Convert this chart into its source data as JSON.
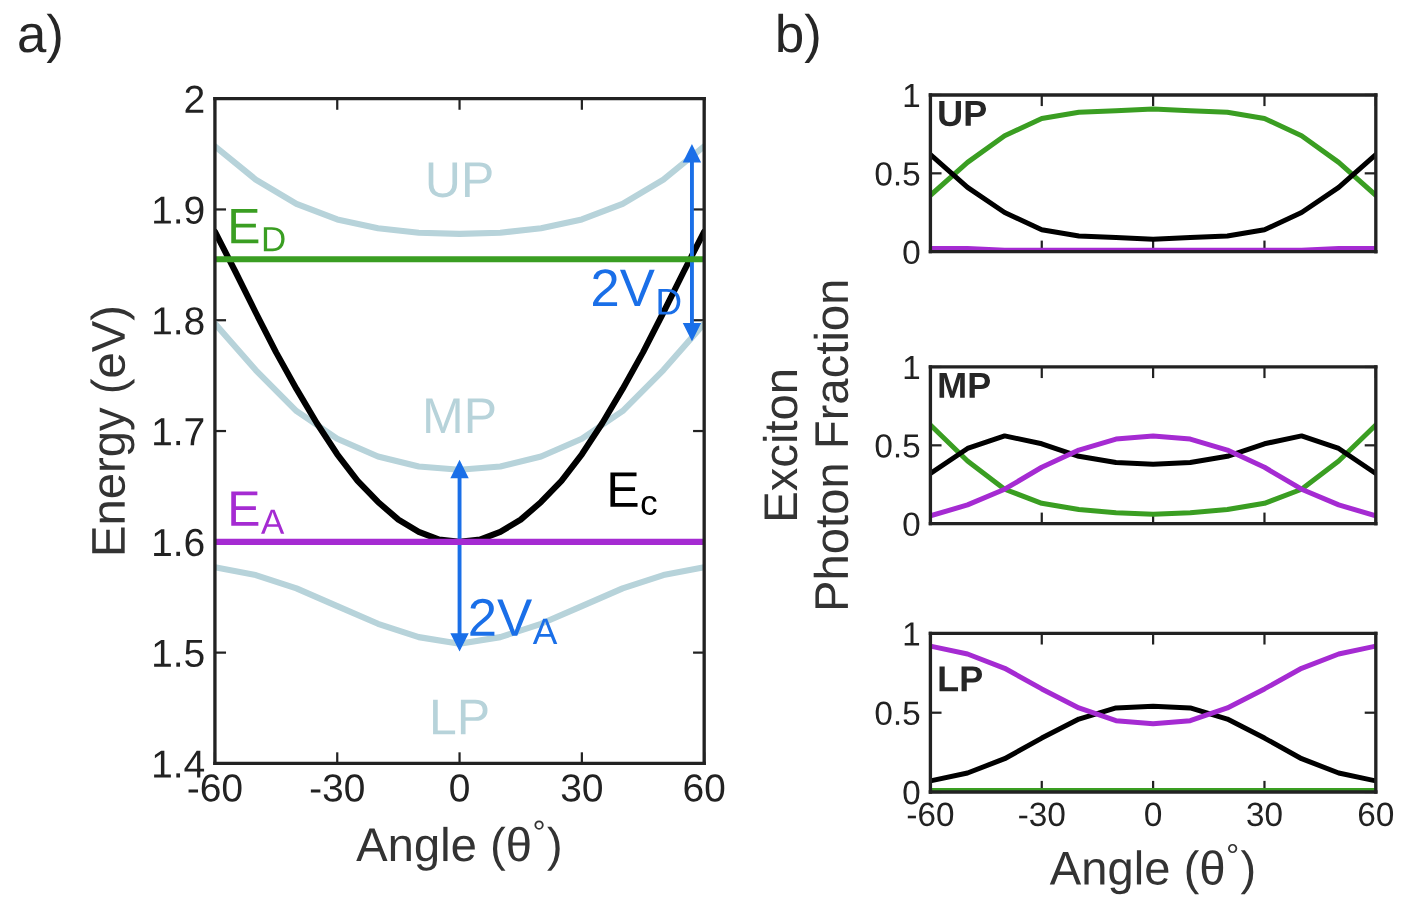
{
  "chart_data": [
    {
      "type": "line",
      "title": "a)",
      "xlabel": "Angle (θ$^{°}$)",
      "ylabel": "Energy (eV)",
      "x": [
        -60,
        -50,
        -40,
        -30,
        -20,
        -10,
        0,
        10,
        20,
        30,
        40,
        50,
        60
      ],
      "xlim": [
        -60,
        60
      ],
      "xticks": [
        -60,
        -30,
        0,
        30,
        60
      ],
      "ylim": [
        1.4,
        2
      ],
      "yticks": [
        1.4,
        1.5,
        1.6,
        1.7,
        1.8,
        1.9,
        2
      ],
      "series": [
        {
          "name": "UP",
          "color": "#b7d3da",
          "values": [
            1.957,
            1.927,
            1.905,
            1.891,
            1.883,
            1.879,
            1.878,
            1.879,
            1.883,
            1.891,
            1.905,
            1.927,
            1.957
          ]
        },
        {
          "name": "MP",
          "color": "#b7d3da",
          "values": [
            1.797,
            1.755,
            1.718,
            1.693,
            1.677,
            1.668,
            1.665,
            1.668,
            1.677,
            1.693,
            1.718,
            1.755,
            1.797
          ]
        },
        {
          "name": "LP",
          "color": "#b7d3da",
          "values": [
            1.577,
            1.57,
            1.558,
            1.542,
            1.526,
            1.514,
            1.508,
            1.514,
            1.526,
            1.542,
            1.558,
            1.57,
            1.577
          ]
        },
        {
          "name": "E$_{c}$",
          "color": "#000000",
          "x": [
            -60,
            -55,
            -50,
            -45,
            -40,
            -35,
            -30,
            -25,
            -20,
            -15,
            -10,
            -5,
            0,
            5,
            10,
            15,
            20,
            25,
            30,
            35,
            40,
            45,
            50,
            55,
            60
          ],
          "values": [
            1.88,
            1.844,
            1.807,
            1.771,
            1.738,
            1.707,
            1.679,
            1.655,
            1.636,
            1.62,
            1.609,
            1.602,
            1.6,
            1.602,
            1.609,
            1.62,
            1.636,
            1.655,
            1.679,
            1.707,
            1.738,
            1.771,
            1.807,
            1.844,
            1.88
          ]
        },
        {
          "name": "2V$_{D}$",
          "color": "#1a6fe8",
          "marker": "triangle",
          "x": [
            57,
            57
          ],
          "values": [
            1.79,
            1.95
          ]
        },
        {
          "name": "2V$_{A}$",
          "color": "#1a6fe8",
          "marker": "triangle",
          "x": [
            0,
            0
          ],
          "values": [
            1.51,
            1.665
          ]
        }
      ],
      "ref_lines": [
        {
          "axis": "y",
          "value": 1.855,
          "label": "E$_{D}$",
          "color": "#3a9e22"
        },
        {
          "axis": "y",
          "value": 1.6,
          "label": "E$_{A}$",
          "color": "#a52bd2"
        }
      ]
    },
    {
      "type": "line",
      "title": "b)",
      "annotations": [
        "UP"
      ],
      "tick_labels": "y",
      "x": [
        -60,
        -50,
        -40,
        -30,
        -20,
        -10,
        0,
        10,
        20,
        30,
        40,
        50,
        60
      ],
      "xlim": [
        -60,
        60
      ],
      "xticks": [
        -60,
        -30,
        0,
        30,
        60
      ],
      "ylim": [
        0,
        1
      ],
      "yticks": [
        0,
        0.5,
        1
      ],
      "series": [
        {
          "color": "#3a9e22",
          "values": [
            0.36,
            0.57,
            0.74,
            0.85,
            0.89,
            0.9,
            0.91,
            0.9,
            0.89,
            0.85,
            0.74,
            0.57,
            0.36
          ]
        },
        {
          "color": "#000000",
          "values": [
            0.62,
            0.41,
            0.25,
            0.14,
            0.1,
            0.09,
            0.08,
            0.09,
            0.1,
            0.14,
            0.25,
            0.41,
            0.62
          ]
        },
        {
          "color": "#a52bd2",
          "values": [
            0.02,
            0.02,
            0.01,
            0.01,
            0.01,
            0.01,
            0.01,
            0.01,
            0.01,
            0.01,
            0.01,
            0.02,
            0.02
          ]
        }
      ]
    },
    {
      "type": "line",
      "ylabel": "Exciton\nPhoton Fraction",
      "annotations": [
        "MP"
      ],
      "tick_labels": "y",
      "x": [
        -60,
        -50,
        -40,
        -30,
        -20,
        -10,
        0,
        10,
        20,
        30,
        40,
        50,
        60
      ],
      "xlim": [
        -60,
        60
      ],
      "xticks": [
        -60,
        -30,
        0,
        30,
        60
      ],
      "ylim": [
        0,
        1
      ],
      "yticks": [
        0,
        0.5,
        1
      ],
      "series": [
        {
          "color": "#3a9e22",
          "values": [
            0.63,
            0.4,
            0.22,
            0.13,
            0.09,
            0.07,
            0.06,
            0.07,
            0.09,
            0.13,
            0.22,
            0.4,
            0.63
          ]
        },
        {
          "color": "#000000",
          "values": [
            0.32,
            0.48,
            0.56,
            0.51,
            0.43,
            0.39,
            0.38,
            0.39,
            0.43,
            0.51,
            0.56,
            0.48,
            0.32
          ]
        },
        {
          "color": "#a52bd2",
          "values": [
            0.05,
            0.12,
            0.22,
            0.36,
            0.47,
            0.54,
            0.56,
            0.54,
            0.47,
            0.36,
            0.22,
            0.12,
            0.05
          ]
        }
      ]
    },
    {
      "type": "line",
      "xlabel": "Angle (θ$^{°}$)",
      "annotations": [
        "LP"
      ],
      "x": [
        -60,
        -50,
        -40,
        -30,
        -20,
        -10,
        0,
        10,
        20,
        30,
        40,
        50,
        60
      ],
      "xlim": [
        -60,
        60
      ],
      "xticks": [
        -60,
        -30,
        0,
        30,
        60
      ],
      "ylim": [
        0,
        1
      ],
      "yticks": [
        0,
        0.5,
        1
      ],
      "series": [
        {
          "color": "#3a9e22",
          "values": [
            0.01,
            0.01,
            0.01,
            0.01,
            0.01,
            0.01,
            0.01,
            0.01,
            0.01,
            0.01,
            0.01,
            0.01,
            0.01
          ]
        },
        {
          "color": "#000000",
          "values": [
            0.07,
            0.12,
            0.21,
            0.34,
            0.46,
            0.53,
            0.54,
            0.53,
            0.46,
            0.34,
            0.21,
            0.12,
            0.07
          ]
        },
        {
          "color": "#a52bd2",
          "values": [
            0.92,
            0.87,
            0.78,
            0.65,
            0.53,
            0.45,
            0.43,
            0.45,
            0.53,
            0.65,
            0.78,
            0.87,
            0.92
          ]
        }
      ]
    }
  ]
}
